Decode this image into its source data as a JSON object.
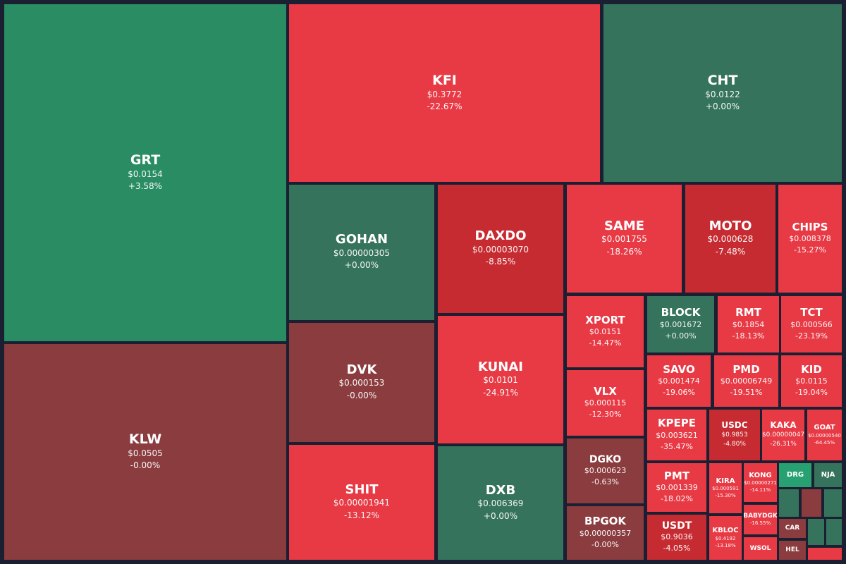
{
  "colors": {
    "background": "#1b1f32",
    "bright_green": "#2a8c63",
    "teal_green": "#36735c",
    "mint_green": "#27a172",
    "red": "#e73a45",
    "deep_red": "#c62b31",
    "maroon": "#8a3c3e"
  },
  "chart_data": {
    "type": "heatmap",
    "title": "",
    "tiles": [
      {
        "symbol": "GRT",
        "price": "$0.0154",
        "change": "+3.58%",
        "color": "#2a8c63"
      },
      {
        "symbol": "KLW",
        "price": "$0.0505",
        "change": "-0.00%",
        "color": "#8a3c3e"
      },
      {
        "symbol": "KFI",
        "price": "$0.3772",
        "change": "-22.67%",
        "color": "#e73a45"
      },
      {
        "symbol": "CHT",
        "price": "$0.0122",
        "change": "+0.00%",
        "color": "#36735c"
      },
      {
        "symbol": "GOHAN",
        "price": "$0.00000305",
        "change": "+0.00%",
        "color": "#36735c"
      },
      {
        "symbol": "DAXDO",
        "price": "$0.00003070",
        "change": "-8.85%",
        "color": "#c62b31"
      },
      {
        "symbol": "SAME",
        "price": "$0.001755",
        "change": "-18.26%",
        "color": "#e73a45"
      },
      {
        "symbol": "MOTO",
        "price": "$0.000628",
        "change": "-7.48%",
        "color": "#c62b31"
      },
      {
        "symbol": "CHIPS",
        "price": "$0.008378",
        "change": "-15.27%",
        "color": "#e73a45"
      },
      {
        "symbol": "DVK",
        "price": "$0.000153",
        "change": "-0.00%",
        "color": "#8a3c3e"
      },
      {
        "symbol": "KUNAI",
        "price": "$0.0101",
        "change": "-24.91%",
        "color": "#e73a45"
      },
      {
        "symbol": "SHIT",
        "price": "$0.00001941",
        "change": "-13.12%",
        "color": "#e73a45"
      },
      {
        "symbol": "DXB",
        "price": "$0.006369",
        "change": "+0.00%",
        "color": "#36735c"
      },
      {
        "symbol": "XPORT",
        "price": "$0.0151",
        "change": "-14.47%",
        "color": "#e73a45"
      },
      {
        "symbol": "BLOCK",
        "price": "$0.001672",
        "change": "+0.00%",
        "color": "#36735c"
      },
      {
        "symbol": "RMT",
        "price": "$0.1854",
        "change": "-18.13%",
        "color": "#e73a45"
      },
      {
        "symbol": "TCT",
        "price": "$0.000566",
        "change": "-23.19%",
        "color": "#e73a45"
      },
      {
        "symbol": "VLX",
        "price": "$0.000115",
        "change": "-12.30%",
        "color": "#e73a45"
      },
      {
        "symbol": "SAVO",
        "price": "$0.001474",
        "change": "-19.06%",
        "color": "#e73a45"
      },
      {
        "symbol": "PMD",
        "price": "$0.00006749",
        "change": "-19.51%",
        "color": "#e73a45"
      },
      {
        "symbol": "KID",
        "price": "$0.0115",
        "change": "-19.04%",
        "color": "#e73a45"
      },
      {
        "symbol": "DGKO",
        "price": "$0.000623",
        "change": "-0.63%",
        "color": "#8a3c3e"
      },
      {
        "symbol": "KPEPE",
        "price": "$0.003621",
        "change": "-35.47%",
        "color": "#e73a45"
      },
      {
        "symbol": "USDC",
        "price": "$0.9853",
        "change": "-4.80%",
        "color": "#c62b31"
      },
      {
        "symbol": "KAKA",
        "price": "$0.00000047",
        "change": "-26.31%",
        "color": "#e73a45"
      },
      {
        "symbol": "GOAT",
        "price": "$0.00000540",
        "change": "-64.45%",
        "color": "#e73a45"
      },
      {
        "symbol": "BPGOK",
        "price": "$0.00000357",
        "change": "-0.00%",
        "color": "#8a3c3e"
      },
      {
        "symbol": "PMT",
        "price": "$0.001339",
        "change": "-18.02%",
        "color": "#e73a45"
      },
      {
        "symbol": "KIRA",
        "price": "$0.000591",
        "change": "-15.30%",
        "color": "#e73a45"
      },
      {
        "symbol": "KONG",
        "price": "$0.00000271",
        "change": "-14.11%",
        "color": "#e73a45"
      },
      {
        "symbol": "DRG",
        "price": "",
        "change": "",
        "color": "#27a172"
      },
      {
        "symbol": "NJA",
        "price": "",
        "change": "",
        "color": "#36735c"
      },
      {
        "symbol": "BABYDGK",
        "price": "",
        "change": "-16.55%",
        "color": "#e73a45"
      },
      {
        "symbol": "USDT",
        "price": "$0.9036",
        "change": "-4.05%",
        "color": "#c62b31"
      },
      {
        "symbol": "KBLOC",
        "price": "$0.4192",
        "change": "-13.18%",
        "color": "#e73a45"
      },
      {
        "symbol": "WSOL",
        "price": "",
        "change": "",
        "color": "#e73a45"
      },
      {
        "symbol": "CAR",
        "price": "",
        "change": "",
        "color": "#8a3c3e"
      },
      {
        "symbol": "HEL",
        "price": "",
        "change": "",
        "color": "#8a3c3e"
      },
      {
        "symbol": "",
        "price": "",
        "change": "",
        "color": "#36735c"
      },
      {
        "symbol": "",
        "price": "",
        "change": "",
        "color": "#8a3c3e"
      },
      {
        "symbol": "",
        "price": "",
        "change": "",
        "color": "#36735c"
      },
      {
        "symbol": "",
        "price": "",
        "change": "",
        "color": "#36735c"
      },
      {
        "symbol": "",
        "price": "",
        "change": "",
        "color": "#36735c"
      },
      {
        "symbol": "",
        "price": "",
        "change": "",
        "color": "#e73a45"
      }
    ]
  }
}
